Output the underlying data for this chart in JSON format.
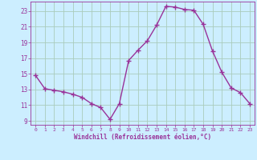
{
  "x": [
    0,
    1,
    2,
    3,
    4,
    5,
    6,
    7,
    8,
    9,
    10,
    11,
    12,
    13,
    14,
    15,
    16,
    17,
    18,
    19,
    20,
    21,
    22,
    23
  ],
  "y": [
    14.8,
    13.1,
    12.9,
    12.7,
    12.4,
    12.0,
    11.2,
    10.7,
    9.2,
    11.2,
    16.7,
    18.0,
    19.2,
    21.2,
    23.6,
    23.5,
    23.2,
    23.1,
    21.3,
    17.9,
    15.2,
    13.2,
    12.6,
    11.2
  ],
  "line_color": "#993399",
  "marker": "+",
  "marker_size": 4,
  "line_width": 1.0,
  "background_color": "#cceeff",
  "grid_color": "#aaccbb",
  "xlabel": "Windchill (Refroidissement éolien,°C)",
  "xlabel_color": "#993399",
  "tick_color": "#993399",
  "label_color": "#993399",
  "ylim": [
    8.5,
    24.2
  ],
  "xlim": [
    -0.5,
    23.5
  ],
  "yticks": [
    9,
    11,
    13,
    15,
    17,
    19,
    21,
    23
  ],
  "xticks": [
    0,
    1,
    2,
    3,
    4,
    5,
    6,
    7,
    8,
    9,
    10,
    11,
    12,
    13,
    14,
    15,
    16,
    17,
    18,
    19,
    20,
    21,
    22,
    23
  ]
}
